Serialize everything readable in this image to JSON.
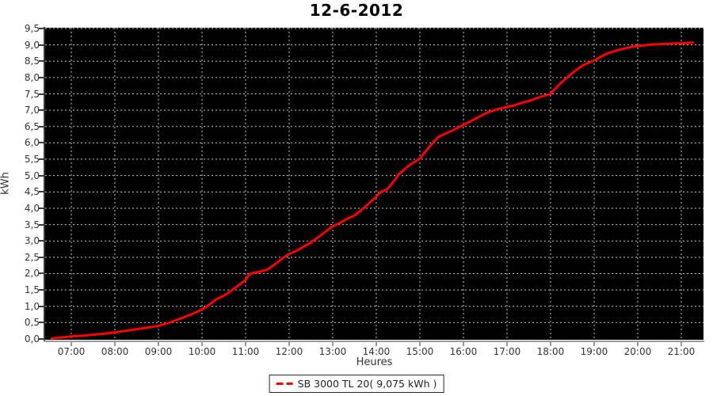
{
  "title": "12-6-2012",
  "colors": {
    "line": "#ff0000",
    "plot_background": "#000000",
    "grid": "#c8c8c8",
    "page_background": "#ffffff",
    "tick_text": "#333333"
  },
  "legend": {
    "label": "SB 3000 TL 20( 9,075 kWh )",
    "marker": "red-dashed-line"
  },
  "chart_data": {
    "type": "line",
    "title": "12-6-2012",
    "xlabel": "Heures",
    "ylabel": "kWh",
    "series": [
      {
        "name": "SB 3000 TL 20",
        "total_label": "9,075 kWh",
        "x_hours": [
          6.55,
          6.75,
          7.0,
          7.25,
          7.5,
          7.75,
          8.0,
          8.25,
          8.5,
          8.75,
          9.0,
          9.25,
          9.5,
          9.75,
          10.0,
          10.17,
          10.33,
          10.5,
          10.75,
          10.92,
          11.0,
          11.08,
          11.17,
          11.33,
          11.5,
          11.67,
          11.83,
          12.0,
          12.17,
          12.33,
          12.5,
          12.67,
          12.83,
          13.0,
          13.17,
          13.33,
          13.5,
          13.67,
          13.83,
          14.0,
          14.08,
          14.25,
          14.42,
          14.5,
          14.67,
          14.83,
          15.0,
          15.17,
          15.33,
          15.42,
          15.58,
          15.75,
          16.0,
          16.25,
          16.5,
          16.75,
          17.0,
          17.17,
          17.33,
          17.5,
          17.75,
          18.0,
          18.08,
          18.25,
          18.42,
          18.58,
          18.75,
          18.92,
          19.0,
          19.17,
          19.33,
          19.5,
          19.67,
          19.83,
          20.0,
          20.25,
          20.5,
          20.75,
          21.0,
          21.15,
          21.27
        ],
        "y_kwh": [
          0.02,
          0.04,
          0.08,
          0.1,
          0.13,
          0.16,
          0.2,
          0.25,
          0.3,
          0.35,
          0.4,
          0.5,
          0.62,
          0.75,
          0.9,
          1.05,
          1.22,
          1.32,
          1.55,
          1.72,
          1.8,
          1.97,
          2.02,
          2.06,
          2.12,
          2.28,
          2.45,
          2.6,
          2.7,
          2.82,
          2.95,
          3.12,
          3.28,
          3.45,
          3.55,
          3.68,
          3.78,
          3.95,
          4.15,
          4.35,
          4.48,
          4.58,
          4.85,
          5.02,
          5.22,
          5.38,
          5.52,
          5.8,
          6.05,
          6.18,
          6.28,
          6.38,
          6.55,
          6.72,
          6.9,
          7.02,
          7.1,
          7.15,
          7.22,
          7.28,
          7.4,
          7.5,
          7.62,
          7.85,
          8.05,
          8.22,
          8.38,
          8.48,
          8.52,
          8.65,
          8.75,
          8.82,
          8.88,
          8.93,
          8.96,
          9.0,
          9.02,
          9.04,
          9.05,
          9.06,
          9.07
        ]
      }
    ],
    "xlim_hours": [
      6.4,
      21.51
    ],
    "ylim": [
      0,
      9.5
    ],
    "x_tick_hours": [
      7,
      8,
      9,
      10,
      11,
      12,
      13,
      14,
      15,
      16,
      17,
      18,
      19,
      20,
      21
    ],
    "x_tick_labels": [
      "07:00",
      "08:00",
      "09:00",
      "10:00",
      "11:00",
      "12:00",
      "13:00",
      "14:00",
      "15:00",
      "16:00",
      "17:00",
      "18:00",
      "19:00",
      "20:00",
      "21:00"
    ],
    "y_tick_values": [
      0,
      0.5,
      1,
      1.5,
      2,
      2.5,
      3,
      3.5,
      4,
      4.5,
      5,
      5.5,
      6,
      6.5,
      7,
      7.5,
      8,
      8.5,
      9,
      9.5
    ],
    "y_tick_labels": [
      "0,0",
      "0,5",
      "1,0",
      "1,5",
      "2,0",
      "2,5",
      "3,0",
      "3,5",
      "4,0",
      "4,5",
      "5,0",
      "5,5",
      "6,0",
      "6,5",
      "7,0",
      "7,5",
      "8,0",
      "8,5",
      "9,0",
      "9,5"
    ],
    "grid": true,
    "legend_position": "bottom-center",
    "legend_label": "SB 3000 TL 20( 9,075 kWh )"
  }
}
